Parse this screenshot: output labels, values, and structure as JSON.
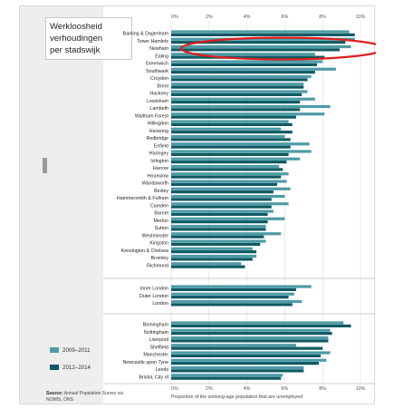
{
  "title_lines": [
    "Werkloosheid",
    "verhoudingen",
    "per stadswijk"
  ],
  "legend": [
    {
      "label": "2009–2011",
      "color": "#4e9ba6"
    },
    {
      "label": "2012–2014",
      "color": "#0e5a63"
    }
  ],
  "source": {
    "bold": "Source:",
    "text": "Annual Population Survey via NOMIS, ONS"
  },
  "highlight_color": "#e21b1b",
  "chart_data": {
    "type": "bar",
    "orientation": "horizontal",
    "xlabel": "Proportion of the working-age population that are unemployed",
    "xlim": [
      0,
      10
    ],
    "xticks": [
      "0%",
      "2%",
      "4%",
      "6%",
      "8%",
      "10%"
    ],
    "grid": true,
    "series_colors": [
      "#4e9ba6",
      "#0e5a63"
    ],
    "highlighted_category": "Newham",
    "groups": [
      {
        "name": "london_boroughs",
        "rows": [
          {
            "label": "Barking & Dagenham",
            "values": [
              9.4,
              9.7
            ]
          },
          {
            "label": "Tower Hamlets",
            "values": [
              9.7,
              9.2
            ]
          },
          {
            "label": "Newham",
            "values": [
              9.5,
              8.9
            ]
          },
          {
            "label": "Ealing",
            "values": [
              7.6,
              8.1
            ]
          },
          {
            "label": "Greenwich",
            "values": [
              8.0,
              7.7
            ]
          },
          {
            "label": "Southwark",
            "values": [
              8.7,
              7.6
            ]
          },
          {
            "label": "Croydon",
            "values": [
              7.4,
              7.2
            ]
          },
          {
            "label": "Brent",
            "values": [
              7.0,
              7.0
            ]
          },
          {
            "label": "Hackney",
            "values": [
              7.2,
              6.9
            ]
          },
          {
            "label": "Lewisham",
            "values": [
              7.6,
              6.8
            ]
          },
          {
            "label": "Lambeth",
            "values": [
              8.4,
              6.8
            ]
          },
          {
            "label": "Waltham Forest",
            "values": [
              8.1,
              6.6
            ]
          },
          {
            "label": "Hillingdon",
            "values": [
              6.2,
              6.4
            ]
          },
          {
            "label": "Havering",
            "values": [
              5.8,
              6.4
            ]
          },
          {
            "label": "Redbridge",
            "values": [
              6.0,
              6.3
            ]
          },
          {
            "label": "Enfield",
            "values": [
              7.3,
              6.3
            ]
          },
          {
            "label": "Haringey",
            "values": [
              7.4,
              6.2
            ]
          },
          {
            "label": "Islington",
            "values": [
              6.8,
              6.1
            ]
          },
          {
            "label": "Harrow",
            "values": [
              5.7,
              5.9
            ]
          },
          {
            "label": "Hounslow",
            "values": [
              6.2,
              5.8
            ]
          },
          {
            "label": "Wandsworth",
            "values": [
              6.1,
              5.6
            ]
          },
          {
            "label": "Bexley",
            "values": [
              6.3,
              5.4
            ]
          },
          {
            "label": "Hammersmith & Fulham",
            "values": [
              6.0,
              5.3
            ]
          },
          {
            "label": "Camden",
            "values": [
              6.2,
              5.3
            ]
          },
          {
            "label": "Barnet",
            "values": [
              5.4,
              5.1
            ]
          },
          {
            "label": "Merton",
            "values": [
              6.0,
              5.1
            ]
          },
          {
            "label": "Sutton",
            "values": [
              5.0,
              5.0
            ]
          },
          {
            "label": "Westminster",
            "values": [
              5.8,
              4.9
            ]
          },
          {
            "label": "Kingston",
            "values": [
              5.0,
              4.7
            ]
          },
          {
            "label": "Kensington & Chelsea",
            "values": [
              4.3,
              4.5
            ]
          },
          {
            "label": "Bromley",
            "values": [
              4.5,
              4.3
            ]
          },
          {
            "label": "Richmond",
            "values": [
              3.7,
              3.9
            ]
          }
        ]
      },
      {
        "name": "london_totals",
        "rows": [
          {
            "label": "Inner London",
            "values": [
              7.4,
              6.6
            ]
          },
          {
            "label": "Outer London",
            "values": [
              6.5,
              6.2
            ]
          },
          {
            "label": "London",
            "values": [
              6.9,
              6.4
            ]
          }
        ]
      },
      {
        "name": "cities",
        "rows": [
          {
            "label": "Birmingham",
            "values": [
              9.1,
              9.5
            ]
          },
          {
            "label": "Nottingham",
            "values": [
              8.4,
              8.5
            ]
          },
          {
            "label": "Liverpool",
            "values": [
              8.3,
              8.3
            ]
          },
          {
            "label": "Sheffield",
            "values": [
              6.6,
              8.0
            ]
          },
          {
            "label": "Manchester",
            "values": [
              8.4,
              7.9
            ]
          },
          {
            "label": "Newcastle upon Tyne",
            "values": [
              8.2,
              7.8
            ]
          },
          {
            "label": "Leeds",
            "values": [
              7.0,
              7.0
            ]
          },
          {
            "label": "Bristol, City of",
            "values": [
              5.9,
              5.8
            ]
          }
        ]
      }
    ]
  }
}
